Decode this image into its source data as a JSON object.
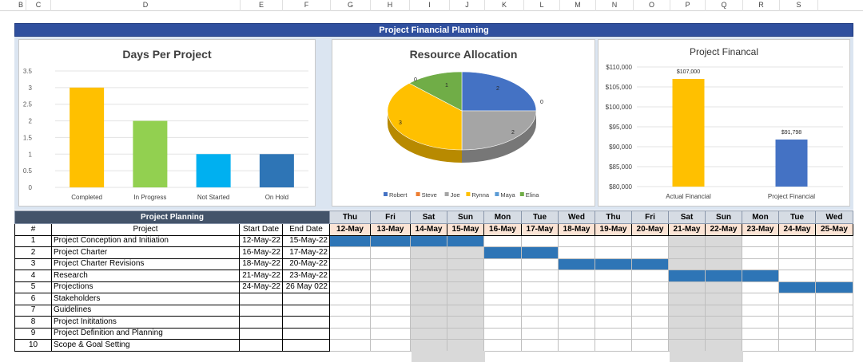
{
  "columns": [
    "B",
    "C",
    "D",
    "E",
    "F",
    "G",
    "H",
    "I",
    "J",
    "K",
    "L",
    "M",
    "N",
    "O",
    "P",
    "Q",
    "R",
    "S"
  ],
  "banner": "Project Financial Planning",
  "charts": {
    "days": {
      "title": "Days Per Project"
    },
    "resource": {
      "title": "Resource Allocation"
    },
    "financial": {
      "title": "Project Financal"
    }
  },
  "chart_data": [
    {
      "type": "bar",
      "title": "Days Per Project",
      "categories": [
        "Completed",
        "In Progress",
        "Not Started",
        "On Hold"
      ],
      "values": [
        3,
        2,
        1,
        1
      ],
      "colors": [
        "#ffc000",
        "#92d050",
        "#00b0f0",
        "#2e75b6"
      ],
      "ylim": [
        0,
        3.5
      ],
      "yticks": [
        "0",
        "0.5",
        "1",
        "1.5",
        "2",
        "2.5",
        "3",
        "3.5"
      ],
      "grid": true
    },
    {
      "type": "pie",
      "title": "Resource Allocation",
      "labels": [
        "Robert",
        "Steve",
        "Joe",
        "Rynna",
        "Maya",
        "Elina"
      ],
      "values": [
        2,
        0,
        2,
        3,
        0,
        1
      ],
      "colors": [
        "#4472c4",
        "#ed7d31",
        "#a5a5a5",
        "#ffc000",
        "#5b9bd5",
        "#70ad47"
      ],
      "legend": "bottom"
    },
    {
      "type": "bar",
      "title": "Project Financal",
      "categories": [
        "Actual Financial",
        "Project Financial"
      ],
      "values": [
        107000,
        91798
      ],
      "value_labels": [
        "$107,000",
        "$91,798"
      ],
      "colors": [
        "#ffc000",
        "#4472c4"
      ],
      "ylim": [
        80000,
        110000
      ],
      "yticks": [
        "$80,000",
        "$85,000",
        "$90,000",
        "$95,000",
        "$100,000",
        "$105,000",
        "$110,000"
      ],
      "grid": true
    }
  ],
  "planning": {
    "title": "Project Planning",
    "headers": {
      "num": "#",
      "project": "Project",
      "start": "Start Date",
      "end": "End Date"
    },
    "days": [
      "Thu",
      "Fri",
      "Sat",
      "Sun",
      "Mon",
      "Tue",
      "Wed",
      "Thu",
      "Fri",
      "Sat",
      "Sun",
      "Mon",
      "Tue",
      "Wed"
    ],
    "dates": [
      "12-May",
      "13-May",
      "14-May",
      "15-May",
      "16-May",
      "17-May",
      "18-May",
      "19-May",
      "20-May",
      "21-May",
      "22-May",
      "23-May",
      "24-May",
      "25-May"
    ],
    "weekend_cols": [
      2,
      3,
      9,
      10
    ],
    "rows": [
      {
        "num": "1",
        "project": "Project Conception and Initiation",
        "start": "12-May-22",
        "end": "15-May-22",
        "bar": [
          0,
          3
        ]
      },
      {
        "num": "2",
        "project": "Project Charter",
        "start": "16-May-22",
        "end": "17-May-22",
        "bar": [
          4,
          5
        ]
      },
      {
        "num": "3",
        "project": "Project Charter Revisions",
        "start": "18-May-22",
        "end": "20-May-22",
        "bar": [
          6,
          8
        ]
      },
      {
        "num": "4",
        "project": "Research",
        "start": "21-May-22",
        "end": "23-May-22",
        "bar": [
          9,
          11
        ]
      },
      {
        "num": "5",
        "project": "Projections",
        "start": "24-May-22",
        "end": "26 May 022",
        "bar": [
          12,
          13
        ]
      },
      {
        "num": "6",
        "project": "Stakeholders",
        "start": "",
        "end": ""
      },
      {
        "num": "7",
        "project": "Guidelines",
        "start": "",
        "end": ""
      },
      {
        "num": "8",
        "project": "Project Inititations",
        "start": "",
        "end": ""
      },
      {
        "num": "9",
        "project": "Project Definition and Planning",
        "start": "",
        "end": ""
      },
      {
        "num": "10",
        "project": "Scope & Goal Setting",
        "start": "",
        "end": ""
      }
    ]
  }
}
